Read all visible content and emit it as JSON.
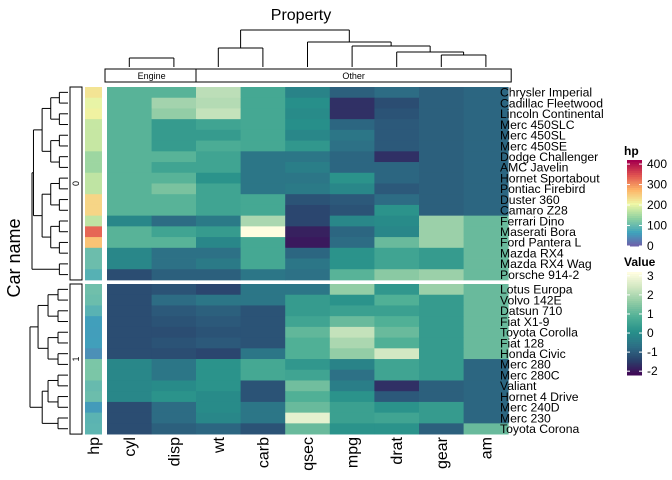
{
  "chart_data": {
    "type": "heatmap",
    "title": "Property",
    "ylabel": "Car name",
    "column_groups": [
      {
        "label": "Engine",
        "columns": [
          "cyl",
          "disp"
        ]
      },
      {
        "label": "Other",
        "columns": [
          "wt",
          "carb",
          "qsec",
          "mpg",
          "drat",
          "gear",
          "am"
        ]
      }
    ],
    "annotation_column": "hp",
    "columns": [
      "cyl",
      "disp",
      "wt",
      "carb",
      "qsec",
      "mpg",
      "drat",
      "gear",
      "am"
    ],
    "row_groups": [
      {
        "label": "0",
        "rows": [
          "Chrysler Imperial",
          "Cadillac Fleetwood",
          "Lincoln Continental",
          "Merc 450SLC",
          "Merc 450SL",
          "Merc 450SE",
          "Dodge Challenger",
          "AMC Javelin",
          "Hornet Sportabout",
          "Pontiac Firebird",
          "Duster 360",
          "Camaro Z28",
          "Ferrari Dino",
          "Maserati Bora",
          "Ford Pantera L",
          "Mazda RX4",
          "Mazda RX4 Wag",
          "Porsche 914-2"
        ]
      },
      {
        "label": "1",
        "rows": [
          "Lotus Europa",
          "Volvo 142E",
          "Datsun 710",
          "Fiat X1-9",
          "Toyota Corolla",
          "Fiat 128",
          "Honda Civic",
          "Merc 280",
          "Merc 280C",
          "Valiant",
          "Hornet 4 Drive",
          "Merc 240D",
          "Merc 230",
          "Toyota Corona"
        ]
      }
    ],
    "hp": [
      230,
      205,
      215,
      180,
      180,
      180,
      150,
      150,
      175,
      175,
      245,
      245,
      175,
      335,
      264,
      110,
      110,
      91,
      113,
      109,
      93,
      66,
      65,
      66,
      52,
      123,
      123,
      105,
      110,
      62,
      95,
      97
    ],
    "values": [
      [
        1.0,
        1.0,
        2.2,
        0.7,
        -0.2,
        -0.9,
        -0.7,
        -0.9,
        -0.8
      ],
      [
        1.0,
        1.9,
        2.1,
        0.7,
        0.1,
        -1.6,
        -1.2,
        -0.9,
        -0.8
      ],
      [
        1.0,
        1.7,
        2.3,
        0.7,
        0.0,
        -1.6,
        -1.1,
        -0.9,
        -0.8
      ],
      [
        1.0,
        0.4,
        0.6,
        0.7,
        0.1,
        -0.8,
        -1.0,
        -0.9,
        -0.8
      ],
      [
        1.0,
        0.4,
        0.4,
        0.7,
        -0.1,
        -0.5,
        -1.0,
        -0.9,
        -0.8
      ],
      [
        1.0,
        0.4,
        0.8,
        0.7,
        0.3,
        -0.6,
        -1.0,
        -0.9,
        -0.8
      ],
      [
        1.0,
        1.0,
        0.6,
        -0.5,
        -0.5,
        -0.8,
        -1.6,
        -0.9,
        -0.8
      ],
      [
        1.0,
        0.6,
        0.6,
        -0.5,
        -0.3,
        -0.8,
        -0.8,
        -0.9,
        -0.8
      ],
      [
        1.0,
        1.0,
        0.2,
        -0.5,
        -0.5,
        0.2,
        -0.8,
        -0.9,
        -0.8
      ],
      [
        1.0,
        1.4,
        0.6,
        -0.5,
        -0.4,
        -0.1,
        -1.0,
        -0.9,
        -0.8
      ],
      [
        1.0,
        1.0,
        0.6,
        0.7,
        -1.1,
        -1.0,
        -0.7,
        -0.9,
        -0.8
      ],
      [
        1.0,
        1.0,
        0.6,
        0.7,
        -1.3,
        -1.1,
        0.2,
        -0.9,
        -0.8
      ],
      [
        -0.1,
        -0.7,
        -0.4,
        2.0,
        -1.3,
        -0.1,
        0.0,
        1.8,
        1.2
      ],
      [
        1.0,
        0.6,
        0.4,
        3.2,
        -1.8,
        -0.8,
        -0.1,
        1.8,
        1.2
      ],
      [
        1.0,
        1.0,
        -0.1,
        0.7,
        -1.9,
        -0.7,
        1.2,
        1.8,
        1.2
      ],
      [
        -0.1,
        -0.6,
        -0.6,
        0.7,
        -0.8,
        0.2,
        0.6,
        0.4,
        1.2
      ],
      [
        -0.1,
        -0.6,
        -0.4,
        0.7,
        -0.5,
        0.2,
        0.6,
        0.4,
        1.2
      ],
      [
        -1.2,
        -0.9,
        -0.9,
        -0.5,
        -0.6,
        1.0,
        1.6,
        1.8,
        1.2
      ],
      [
        -1.2,
        -1.1,
        -1.3,
        -0.5,
        -0.5,
        1.7,
        0.3,
        1.8,
        1.2
      ],
      [
        -1.2,
        -0.7,
        -0.5,
        -0.5,
        0.4,
        0.2,
        0.9,
        0.4,
        1.2
      ],
      [
        -1.2,
        -1.0,
        -0.9,
        -1.1,
        0.4,
        0.5,
        0.5,
        0.4,
        1.2
      ],
      [
        -1.2,
        -1.1,
        -1.0,
        -1.1,
        0.6,
        1.2,
        0.9,
        0.4,
        1.2
      ],
      [
        -1.2,
        -1.2,
        -1.1,
        -1.1,
        1.1,
        2.3,
        1.2,
        0.4,
        1.2
      ],
      [
        -1.2,
        -1.1,
        -1.0,
        -1.1,
        0.9,
        2.0,
        0.9,
        0.4,
        1.2
      ],
      [
        -1.2,
        -1.2,
        -1.3,
        -0.5,
        0.9,
        1.7,
        2.5,
        0.4,
        1.2
      ],
      [
        -0.1,
        -0.5,
        0.2,
        0.7,
        0.3,
        -0.2,
        0.6,
        0.4,
        -0.8
      ],
      [
        -0.1,
        -0.5,
        0.2,
        0.7,
        0.6,
        -0.6,
        0.6,
        0.4,
        -0.8
      ],
      [
        -0.1,
        -0.0,
        0.2,
        -1.1,
        1.3,
        -0.3,
        -1.6,
        -0.9,
        -0.8
      ],
      [
        -0.1,
        0.2,
        -0.0,
        -1.1,
        0.9,
        0.2,
        -1.0,
        -0.9,
        -0.8
      ],
      [
        -1.2,
        -0.7,
        -0.0,
        -0.5,
        1.2,
        0.5,
        0.2,
        0.4,
        -0.8
      ],
      [
        -1.2,
        -0.7,
        -0.1,
        -0.5,
        2.8,
        0.5,
        0.6,
        0.4,
        -0.8
      ],
      [
        -1.2,
        -0.9,
        -0.8,
        -1.1,
        1.2,
        0.2,
        0.2,
        -0.9,
        1.2
      ]
    ],
    "legend": [
      {
        "title": "hp",
        "ticks": [
          0,
          100,
          200,
          300,
          400
        ],
        "range": [
          0,
          420
        ],
        "position": "right"
      },
      {
        "title": "Value",
        "ticks": [
          3,
          2,
          1,
          0,
          -1,
          -2
        ],
        "range": [
          -2.2,
          3.2
        ],
        "position": "right"
      }
    ],
    "colors": {
      "value_scale": [
        "#440154",
        "#2a3e6a",
        "#2d6f86",
        "#27908a",
        "#4faf96",
        "#8fcba4",
        "#cfe6c0",
        "#fffde0"
      ],
      "hp_scale": [
        "#7359a8",
        "#3ea3bc",
        "#8fd1a0",
        "#eff7a6",
        "#fdb366",
        "#e05250",
        "#a6004d"
      ]
    }
  }
}
